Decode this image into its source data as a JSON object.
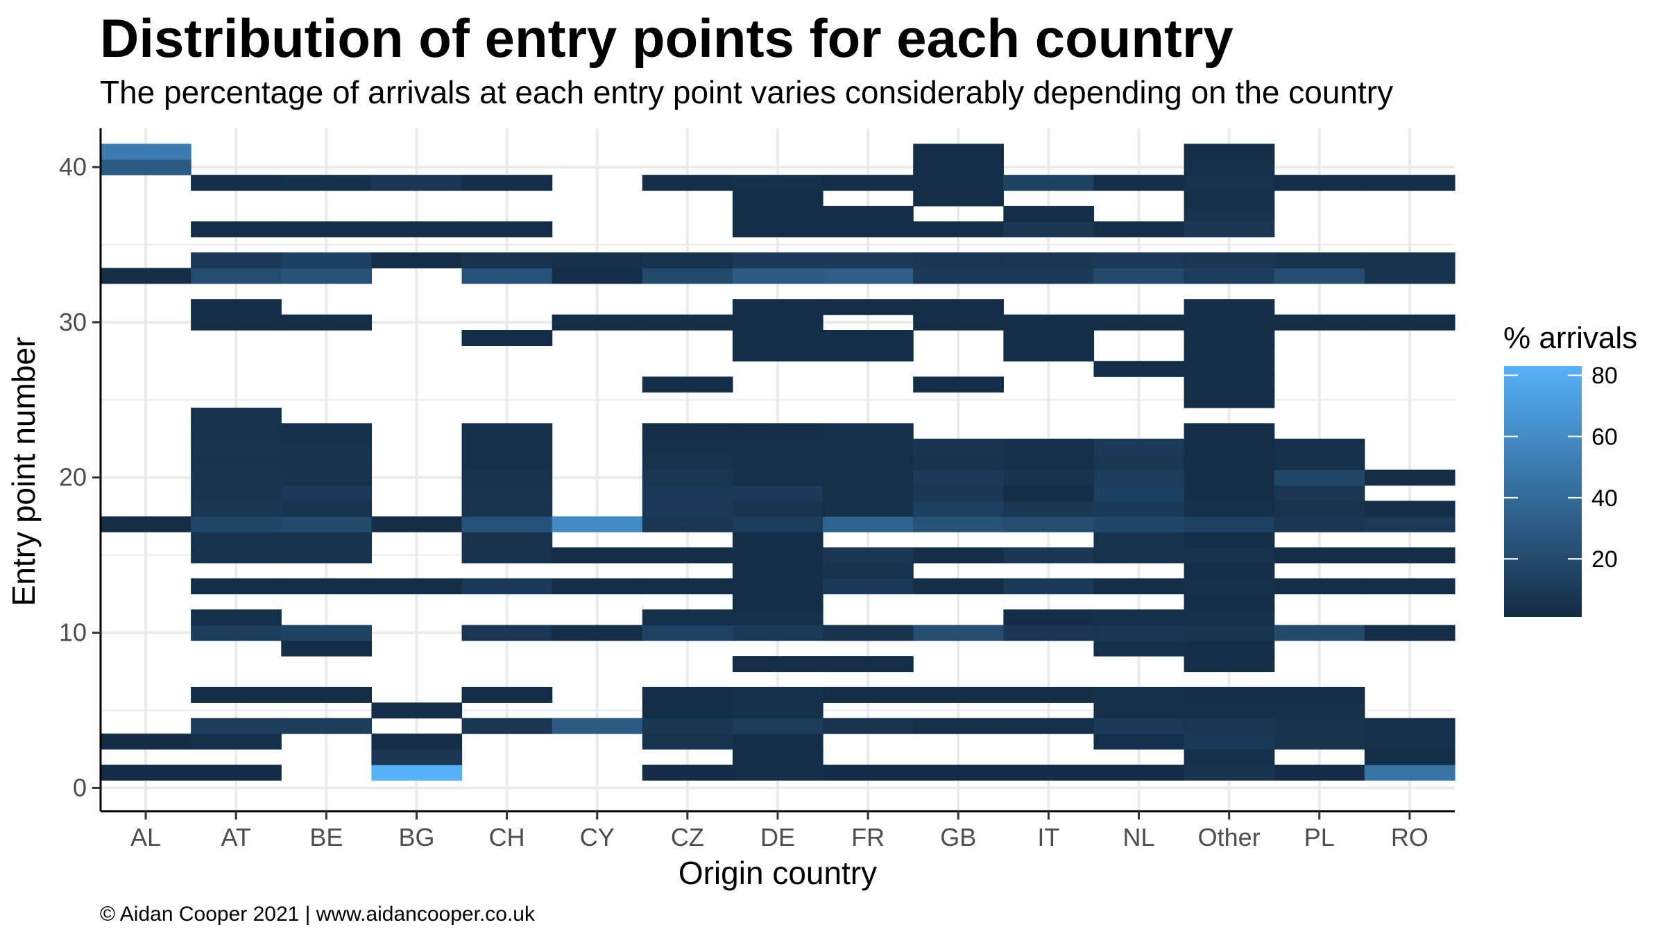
{
  "chart_data": {
    "type": "heatmap",
    "title": "Distribution of entry points for each country",
    "subtitle": "The percentage of arrivals at each entry point varies considerably depending on the country",
    "xlabel": "Origin country",
    "ylabel": "Entry point number",
    "categories": [
      "AL",
      "AT",
      "BE",
      "BG",
      "CH",
      "CY",
      "CZ",
      "DE",
      "FR",
      "GB",
      "IT",
      "NL",
      "Other",
      "PL",
      "RO"
    ],
    "y_ticks": [
      0,
      10,
      20,
      30,
      40
    ],
    "ylim": [
      -1.5,
      42.5
    ],
    "legend": {
      "title": "% arrivals",
      "ticks": [
        20,
        40,
        60,
        80
      ],
      "range": [
        1,
        83
      ],
      "color_low": "#132B43",
      "color_high": "#56B1F7",
      "position": "right"
    },
    "cells": [
      [
        "AL",
        1,
        2
      ],
      [
        "AL",
        3,
        2
      ],
      [
        "AL",
        17,
        3
      ],
      [
        "AL",
        33,
        3
      ],
      [
        "AL",
        40,
        30
      ],
      [
        "AL",
        41,
        50
      ],
      [
        "AT",
        1,
        2
      ],
      [
        "AT",
        3,
        4
      ],
      [
        "AT",
        4,
        12
      ],
      [
        "AT",
        6,
        3
      ],
      [
        "AT",
        10,
        12
      ],
      [
        "AT",
        11,
        4
      ],
      [
        "AT",
        13,
        3
      ],
      [
        "AT",
        15,
        5
      ],
      [
        "AT",
        16,
        5
      ],
      [
        "AT",
        17,
        18
      ],
      [
        "AT",
        18,
        8
      ],
      [
        "AT",
        19,
        7
      ],
      [
        "AT",
        20,
        7
      ],
      [
        "AT",
        21,
        6
      ],
      [
        "AT",
        22,
        7
      ],
      [
        "AT",
        23,
        5
      ],
      [
        "AT",
        24,
        5
      ],
      [
        "AT",
        30,
        3
      ],
      [
        "AT",
        31,
        3
      ],
      [
        "AT",
        33,
        22
      ],
      [
        "AT",
        34,
        10
      ],
      [
        "AT",
        36,
        3
      ],
      [
        "AT",
        39,
        3
      ],
      [
        "BE",
        4,
        12
      ],
      [
        "BE",
        6,
        3
      ],
      [
        "BE",
        9,
        3
      ],
      [
        "BE",
        10,
        15
      ],
      [
        "BE",
        13,
        3
      ],
      [
        "BE",
        15,
        5
      ],
      [
        "BE",
        16,
        6
      ],
      [
        "BE",
        17,
        20
      ],
      [
        "BE",
        18,
        6
      ],
      [
        "BE",
        19,
        10
      ],
      [
        "BE",
        20,
        6
      ],
      [
        "BE",
        21,
        5
      ],
      [
        "BE",
        22,
        5
      ],
      [
        "BE",
        23,
        4
      ],
      [
        "BE",
        30,
        3
      ],
      [
        "BE",
        33,
        25
      ],
      [
        "BE",
        34,
        14
      ],
      [
        "BE",
        36,
        3
      ],
      [
        "BE",
        39,
        4
      ],
      [
        "BG",
        1,
        83
      ],
      [
        "BG",
        2,
        8
      ],
      [
        "BG",
        3,
        3
      ],
      [
        "BG",
        5,
        3
      ],
      [
        "BG",
        13,
        3
      ],
      [
        "BG",
        17,
        3
      ],
      [
        "BG",
        34,
        3
      ],
      [
        "BG",
        36,
        3
      ],
      [
        "BG",
        39,
        8
      ],
      [
        "CH",
        4,
        8
      ],
      [
        "CH",
        6,
        3
      ],
      [
        "CH",
        10,
        8
      ],
      [
        "CH",
        13,
        10
      ],
      [
        "CH",
        15,
        6
      ],
      [
        "CH",
        16,
        5
      ],
      [
        "CH",
        17,
        25
      ],
      [
        "CH",
        18,
        6
      ],
      [
        "CH",
        19,
        7
      ],
      [
        "CH",
        20,
        5
      ],
      [
        "CH",
        21,
        4
      ],
      [
        "CH",
        22,
        4
      ],
      [
        "CH",
        23,
        4
      ],
      [
        "CH",
        29,
        3
      ],
      [
        "CH",
        33,
        25
      ],
      [
        "CH",
        34,
        6
      ],
      [
        "CH",
        36,
        3
      ],
      [
        "CH",
        39,
        3
      ],
      [
        "CY",
        4,
        30
      ],
      [
        "CY",
        10,
        3
      ],
      [
        "CY",
        13,
        3
      ],
      [
        "CY",
        15,
        3
      ],
      [
        "CY",
        17,
        60
      ],
      [
        "CY",
        30,
        3
      ],
      [
        "CY",
        33,
        3
      ],
      [
        "CY",
        34,
        4
      ],
      [
        "CZ",
        1,
        2
      ],
      [
        "CZ",
        3,
        5
      ],
      [
        "CZ",
        4,
        8
      ],
      [
        "CZ",
        5,
        3
      ],
      [
        "CZ",
        6,
        3
      ],
      [
        "CZ",
        10,
        15
      ],
      [
        "CZ",
        11,
        4
      ],
      [
        "CZ",
        13,
        3
      ],
      [
        "CZ",
        15,
        3
      ],
      [
        "CZ",
        17,
        8
      ],
      [
        "CZ",
        18,
        10
      ],
      [
        "CZ",
        19,
        10
      ],
      [
        "CZ",
        20,
        8
      ],
      [
        "CZ",
        21,
        6
      ],
      [
        "CZ",
        22,
        4
      ],
      [
        "CZ",
        23,
        3
      ],
      [
        "CZ",
        26,
        3
      ],
      [
        "CZ",
        30,
        3
      ],
      [
        "CZ",
        33,
        20
      ],
      [
        "CZ",
        34,
        6
      ],
      [
        "CZ",
        39,
        3
      ],
      [
        "DE",
        1,
        3
      ],
      [
        "DE",
        2,
        3
      ],
      [
        "DE",
        3,
        3
      ],
      [
        "DE",
        4,
        12
      ],
      [
        "DE",
        5,
        4
      ],
      [
        "DE",
        6,
        4
      ],
      [
        "DE",
        8,
        3
      ],
      [
        "DE",
        10,
        10
      ],
      [
        "DE",
        11,
        4
      ],
      [
        "DE",
        12,
        3
      ],
      [
        "DE",
        13,
        3
      ],
      [
        "DE",
        14,
        3
      ],
      [
        "DE",
        15,
        3
      ],
      [
        "DE",
        16,
        3
      ],
      [
        "DE",
        17,
        12
      ],
      [
        "DE",
        18,
        7
      ],
      [
        "DE",
        19,
        10
      ],
      [
        "DE",
        20,
        4
      ],
      [
        "DE",
        21,
        4
      ],
      [
        "DE",
        22,
        4
      ],
      [
        "DE",
        23,
        3
      ],
      [
        "DE",
        28,
        3
      ],
      [
        "DE",
        29,
        3
      ],
      [
        "DE",
        30,
        3
      ],
      [
        "DE",
        31,
        3
      ],
      [
        "DE",
        33,
        30
      ],
      [
        "DE",
        34,
        10
      ],
      [
        "DE",
        36,
        3
      ],
      [
        "DE",
        37,
        3
      ],
      [
        "DE",
        38,
        3
      ],
      [
        "DE",
        39,
        4
      ],
      [
        "FR",
        1,
        2
      ],
      [
        "FR",
        4,
        6
      ],
      [
        "FR",
        6,
        3
      ],
      [
        "FR",
        8,
        3
      ],
      [
        "FR",
        10,
        6
      ],
      [
        "FR",
        13,
        10
      ],
      [
        "FR",
        14,
        5
      ],
      [
        "FR",
        15,
        8
      ],
      [
        "FR",
        17,
        35
      ],
      [
        "FR",
        18,
        4
      ],
      [
        "FR",
        19,
        4
      ],
      [
        "FR",
        20,
        4
      ],
      [
        "FR",
        21,
        4
      ],
      [
        "FR",
        22,
        4
      ],
      [
        "FR",
        23,
        4
      ],
      [
        "FR",
        28,
        3
      ],
      [
        "FR",
        29,
        3
      ],
      [
        "FR",
        31,
        3
      ],
      [
        "FR",
        33,
        32
      ],
      [
        "FR",
        34,
        10
      ],
      [
        "FR",
        36,
        3
      ],
      [
        "FR",
        37,
        3
      ],
      [
        "FR",
        39,
        3
      ],
      [
        "GB",
        1,
        2
      ],
      [
        "GB",
        4,
        4
      ],
      [
        "GB",
        6,
        3
      ],
      [
        "GB",
        10,
        22
      ],
      [
        "GB",
        13,
        3
      ],
      [
        "GB",
        15,
        3
      ],
      [
        "GB",
        17,
        25
      ],
      [
        "GB",
        18,
        14
      ],
      [
        "GB",
        19,
        8
      ],
      [
        "GB",
        20,
        10
      ],
      [
        "GB",
        21,
        6
      ],
      [
        "GB",
        22,
        7
      ],
      [
        "GB",
        26,
        3
      ],
      [
        "GB",
        30,
        3
      ],
      [
        "GB",
        31,
        3
      ],
      [
        "GB",
        33,
        10
      ],
      [
        "GB",
        34,
        8
      ],
      [
        "GB",
        36,
        3
      ],
      [
        "GB",
        38,
        3
      ],
      [
        "GB",
        39,
        3
      ],
      [
        "GB",
        40,
        3
      ],
      [
        "GB",
        41,
        3
      ],
      [
        "IT",
        1,
        2
      ],
      [
        "IT",
        4,
        4
      ],
      [
        "IT",
        6,
        3
      ],
      [
        "IT",
        10,
        8
      ],
      [
        "IT",
        11,
        3
      ],
      [
        "IT",
        13,
        10
      ],
      [
        "IT",
        15,
        8
      ],
      [
        "IT",
        17,
        22
      ],
      [
        "IT",
        18,
        8
      ],
      [
        "IT",
        19,
        3
      ],
      [
        "IT",
        20,
        6
      ],
      [
        "IT",
        21,
        4
      ],
      [
        "IT",
        22,
        4
      ],
      [
        "IT",
        28,
        3
      ],
      [
        "IT",
        29,
        3
      ],
      [
        "IT",
        30,
        3
      ],
      [
        "IT",
        33,
        10
      ],
      [
        "IT",
        34,
        8
      ],
      [
        "IT",
        36,
        8
      ],
      [
        "IT",
        37,
        3
      ],
      [
        "IT",
        39,
        15
      ],
      [
        "NL",
        1,
        2
      ],
      [
        "NL",
        3,
        4
      ],
      [
        "NL",
        4,
        10
      ],
      [
        "NL",
        5,
        4
      ],
      [
        "NL",
        6,
        4
      ],
      [
        "NL",
        9,
        4
      ],
      [
        "NL",
        10,
        8
      ],
      [
        "NL",
        11,
        4
      ],
      [
        "NL",
        13,
        3
      ],
      [
        "NL",
        15,
        5
      ],
      [
        "NL",
        16,
        6
      ],
      [
        "NL",
        17,
        18
      ],
      [
        "NL",
        18,
        10
      ],
      [
        "NL",
        19,
        14
      ],
      [
        "NL",
        20,
        12
      ],
      [
        "NL",
        21,
        8
      ],
      [
        "NL",
        22,
        10
      ],
      [
        "NL",
        27,
        3
      ],
      [
        "NL",
        30,
        3
      ],
      [
        "NL",
        33,
        20
      ],
      [
        "NL",
        34,
        10
      ],
      [
        "NL",
        36,
        3
      ],
      [
        "NL",
        39,
        3
      ],
      [
        "Other",
        1,
        6
      ],
      [
        "Other",
        2,
        4
      ],
      [
        "Other",
        3,
        10
      ],
      [
        "Other",
        4,
        8
      ],
      [
        "Other",
        5,
        4
      ],
      [
        "Other",
        6,
        3
      ],
      [
        "Other",
        8,
        3
      ],
      [
        "Other",
        9,
        3
      ],
      [
        "Other",
        10,
        7
      ],
      [
        "Other",
        11,
        4
      ],
      [
        "Other",
        12,
        3
      ],
      [
        "Other",
        13,
        4
      ],
      [
        "Other",
        14,
        3
      ],
      [
        "Other",
        15,
        5
      ],
      [
        "Other",
        16,
        3
      ],
      [
        "Other",
        17,
        14
      ],
      [
        "Other",
        18,
        4
      ],
      [
        "Other",
        19,
        3
      ],
      [
        "Other",
        20,
        3
      ],
      [
        "Other",
        21,
        3
      ],
      [
        "Other",
        22,
        3
      ],
      [
        "Other",
        23,
        3
      ],
      [
        "Other",
        25,
        3
      ],
      [
        "Other",
        26,
        3
      ],
      [
        "Other",
        27,
        3
      ],
      [
        "Other",
        28,
        3
      ],
      [
        "Other",
        29,
        3
      ],
      [
        "Other",
        30,
        3
      ],
      [
        "Other",
        31,
        3
      ],
      [
        "Other",
        33,
        12
      ],
      [
        "Other",
        34,
        8
      ],
      [
        "Other",
        36,
        8
      ],
      [
        "Other",
        37,
        5
      ],
      [
        "Other",
        38,
        4
      ],
      [
        "Other",
        39,
        6
      ],
      [
        "Other",
        40,
        4
      ],
      [
        "Other",
        41,
        3
      ],
      [
        "PL",
        1,
        2
      ],
      [
        "PL",
        3,
        6
      ],
      [
        "PL",
        4,
        6
      ],
      [
        "PL",
        5,
        4
      ],
      [
        "PL",
        6,
        3
      ],
      [
        "PL",
        10,
        20
      ],
      [
        "PL",
        13,
        3
      ],
      [
        "PL",
        15,
        3
      ],
      [
        "PL",
        17,
        8
      ],
      [
        "PL",
        18,
        6
      ],
      [
        "PL",
        19,
        8
      ],
      [
        "PL",
        20,
        18
      ],
      [
        "PL",
        21,
        4
      ],
      [
        "PL",
        22,
        4
      ],
      [
        "PL",
        30,
        3
      ],
      [
        "PL",
        33,
        22
      ],
      [
        "PL",
        34,
        6
      ],
      [
        "PL",
        39,
        3
      ],
      [
        "RO",
        1,
        45
      ],
      [
        "RO",
        2,
        3
      ],
      [
        "RO",
        3,
        4
      ],
      [
        "RO",
        4,
        4
      ],
      [
        "RO",
        10,
        3
      ],
      [
        "RO",
        13,
        3
      ],
      [
        "RO",
        15,
        3
      ],
      [
        "RO",
        17,
        10
      ],
      [
        "RO",
        18,
        3
      ],
      [
        "RO",
        20,
        3
      ],
      [
        "RO",
        30,
        3
      ],
      [
        "RO",
        33,
        5
      ],
      [
        "RO",
        34,
        6
      ],
      [
        "RO",
        39,
        3
      ]
    ]
  },
  "caption": "© Aidan Cooper 2021 | www.aidancooper.co.uk"
}
